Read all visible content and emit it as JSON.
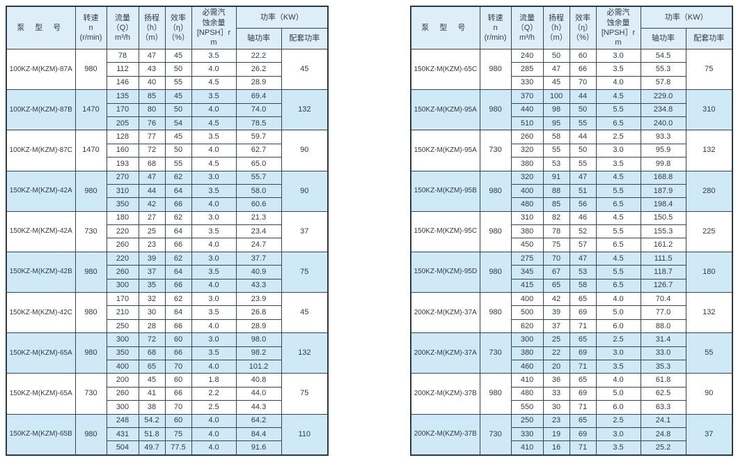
{
  "page": {
    "background": "#ffffff"
  },
  "colors": {
    "border_outer": "#2d3a43",
    "border_inner": "#37444d",
    "header_bg": "#ddeef8",
    "shaded_row_bg": "#cfe9f6",
    "text": "#333a40"
  },
  "header": {
    "model": "泵 型 号",
    "speed": "转速\nn\n(r/min)",
    "flow": "流量\n（Q）\nm³/h",
    "head": "扬程\n（h）\n（m）",
    "efficiency": "效率\n（η）\n（%）",
    "npsh": "必需汽\n蚀余量\n[NPSH］r\nm",
    "power_group": "功率（KW）",
    "shaft_power": "轴功率",
    "rated_power": "配套功率"
  },
  "tables": [
    {
      "groups": [
        {
          "model": "100KZ-M(KZM)-87A",
          "speed": "980",
          "power": "45",
          "shaded": false,
          "rows": [
            [
              "78",
              "47",
              "45",
              "3.5",
              "22.2"
            ],
            [
              "112",
              "43",
              "50",
              "4.0",
              "26.2"
            ],
            [
              "146",
              "40",
              "55",
              "4.5",
              "28.9"
            ]
          ]
        },
        {
          "model": "100KZ-M(KZM)-87B",
          "speed": "1470",
          "power": "132",
          "shaded": true,
          "rows": [
            [
              "135",
              "85",
              "45",
              "3.5",
              "69.4"
            ],
            [
              "170",
              "80",
              "50",
              "4.0",
              "74.0"
            ],
            [
              "205",
              "76",
              "54",
              "4.5",
              "78.5"
            ]
          ]
        },
        {
          "model": "100KZ-M(KZM)-87C",
          "speed": "1470",
          "power": "90",
          "shaded": false,
          "rows": [
            [
              "128",
              "77",
              "45",
              "3.5",
              "59.7"
            ],
            [
              "160",
              "72",
              "50",
              "4.0",
              "62.7"
            ],
            [
              "193",
              "68",
              "55",
              "4.5",
              "65.0"
            ]
          ]
        },
        {
          "model": "150KZ-M(KZM)-42A",
          "speed": "980",
          "power": "90",
          "shaded": true,
          "rows": [
            [
              "270",
              "47",
              "62",
              "3.0",
              "55.7"
            ],
            [
              "310",
              "44",
              "64",
              "3.5",
              "58.0"
            ],
            [
              "350",
              "42",
              "66",
              "4.0",
              "60.6"
            ]
          ]
        },
        {
          "model": "150KZ-M(KZM)-42A",
          "speed": "730",
          "power": "37",
          "shaded": false,
          "rows": [
            [
              "180",
              "27",
              "62",
              "3.0",
              "21.3"
            ],
            [
              "220",
              "25",
              "64",
              "3.5",
              "23.4"
            ],
            [
              "260",
              "23",
              "66",
              "4.0",
              "24.7"
            ]
          ]
        },
        {
          "model": "150KZ-M(KZM)-42B",
          "speed": "980",
          "power": "75",
          "shaded": true,
          "rows": [
            [
              "220",
              "39",
              "62",
              "3.0",
              "37.7"
            ],
            [
              "260",
              "37",
              "64",
              "3.5",
              "40.9"
            ],
            [
              "300",
              "35",
              "66",
              "4.0",
              "43.3"
            ]
          ]
        },
        {
          "model": "150KZ-M(KZM)-42C",
          "speed": "980",
          "power": "45",
          "shaded": false,
          "rows": [
            [
              "170",
              "32",
              "62",
              "3.0",
              "23.9"
            ],
            [
              "210",
              "30",
              "64",
              "3.5",
              "26.8"
            ],
            [
              "250",
              "28",
              "66",
              "4.0",
              "28.9"
            ]
          ]
        },
        {
          "model": "150KZ-M(KZM)-65A",
          "speed": "980",
          "power": "132",
          "shaded": true,
          "rows": [
            [
              "300",
              "72",
              "60",
              "3.0",
              "98.0"
            ],
            [
              "350",
              "68",
              "66",
              "3.5",
              "98.2"
            ],
            [
              "400",
              "65",
              "70",
              "4.0",
              "101.2"
            ]
          ]
        },
        {
          "model": "150KZ-M(KZM)-65A",
          "speed": "730",
          "power": "75",
          "shaded": false,
          "rows": [
            [
              "200",
              "45",
              "60",
              "1.8",
              "40.8"
            ],
            [
              "260",
              "41",
              "66",
              "2.2",
              "44.0"
            ],
            [
              "300",
              "38",
              "70",
              "2.5",
              "44.3"
            ]
          ]
        },
        {
          "model": "150KZ-M(KZM)-65B",
          "speed": "980",
          "power": "110",
          "shaded": true,
          "rows": [
            [
              "248",
              "54.2",
              "60",
              "4.0",
              "64.2"
            ],
            [
              "431",
              "51.8",
              "75",
              "4.0",
              "84.4"
            ],
            [
              "504",
              "49.7",
              "77.5",
              "4.0",
              "91.6"
            ]
          ]
        }
      ]
    },
    {
      "groups": [
        {
          "model": "150KZ-M(KZM)-65C",
          "speed": "980",
          "power": "75",
          "shaded": false,
          "rows": [
            [
              "240",
              "50",
              "60",
              "3.0",
              "54.5"
            ],
            [
              "285",
              "47",
              "66",
              "3.5",
              "55.3"
            ],
            [
              "330",
              "45",
              "70",
              "4.0",
              "57.8"
            ]
          ]
        },
        {
          "model": "150KZ-M(KZM)-95A",
          "speed": "980",
          "power": "310",
          "shaded": true,
          "rows": [
            [
              "370",
              "100",
              "44",
              "4.5",
              "229.0"
            ],
            [
              "440",
              "98",
              "50",
              "5.5",
              "234.8"
            ],
            [
              "510",
              "95",
              "55",
              "6.5",
              "240.0"
            ]
          ]
        },
        {
          "model": "150KZ-M(KZM)-95A",
          "speed": "730",
          "power": "132",
          "shaded": false,
          "rows": [
            [
              "260",
              "58",
              "44",
              "2.5",
              "93.3"
            ],
            [
              "320",
              "55",
              "50",
              "3.0",
              "95.9"
            ],
            [
              "380",
              "53",
              "55",
              "3.5",
              "99.8"
            ]
          ]
        },
        {
          "model": "150KZ-M(KZM)-95B",
          "speed": "980",
          "power": "280",
          "shaded": true,
          "rows": [
            [
              "320",
              "91",
              "47",
              "4.5",
              "168.8"
            ],
            [
              "400",
              "88",
              "51",
              "5.5",
              "187.9"
            ],
            [
              "480",
              "85",
              "56",
              "6.5",
              "198.4"
            ]
          ]
        },
        {
          "model": "150KZ-M(KZM)-95C",
          "speed": "980",
          "power": "225",
          "shaded": false,
          "rows": [
            [
              "310",
              "82",
              "46",
              "4.5",
              "150.5"
            ],
            [
              "380",
              "78",
              "52",
              "5.5",
              "155.3"
            ],
            [
              "450",
              "75",
              "57",
              "6.5",
              "161.2"
            ]
          ]
        },
        {
          "model": "150KZ-M(KZM)-95D",
          "speed": "980",
          "power": "180",
          "shaded": true,
          "rows": [
            [
              "275",
              "70",
              "47",
              "4.5",
              "111.5"
            ],
            [
              "345",
              "67",
              "53",
              "5.5",
              "118.7"
            ],
            [
              "415",
              "65",
              "58",
              "6.5",
              "126.7"
            ]
          ]
        },
        {
          "model": "200KZ-M(KZM)-37A",
          "speed": "980",
          "power": "132",
          "shaded": false,
          "rows": [
            [
              "400",
              "42",
              "65",
              "4.0",
              "70.4"
            ],
            [
              "500",
              "39",
              "69",
              "5.0",
              "77.0"
            ],
            [
              "620",
              "37",
              "71",
              "6.0",
              "88.0"
            ]
          ]
        },
        {
          "model": "200KZ-M(KZM)-37A",
          "speed": "730",
          "power": "55",
          "shaded": true,
          "rows": [
            [
              "300",
              "25",
              "65",
              "2.5",
              "31.4"
            ],
            [
              "380",
              "22",
              "69",
              "3.0",
              "33.0"
            ],
            [
              "460",
              "20",
              "71",
              "3.5",
              "35.3"
            ]
          ]
        },
        {
          "model": "200KZ-M(KZM)-37B",
          "speed": "980",
          "power": "90",
          "shaded": false,
          "rows": [
            [
              "410",
              "36",
              "65",
              "4.0",
              "61.8"
            ],
            [
              "480",
              "33",
              "69",
              "5.0",
              "62.5"
            ],
            [
              "550",
              "30",
              "71",
              "6.0",
              "63.3"
            ]
          ]
        },
        {
          "model": "200KZ-M(KZM)-37B",
          "speed": "730",
          "power": "37",
          "shaded": true,
          "rows": [
            [
              "250",
              "23",
              "65",
              "2.5",
              "24.1"
            ],
            [
              "330",
              "19",
              "69",
              "3.0",
              "24.8"
            ],
            [
              "410",
              "16",
              "71",
              "3.5",
              "25.2"
            ]
          ]
        }
      ]
    }
  ]
}
